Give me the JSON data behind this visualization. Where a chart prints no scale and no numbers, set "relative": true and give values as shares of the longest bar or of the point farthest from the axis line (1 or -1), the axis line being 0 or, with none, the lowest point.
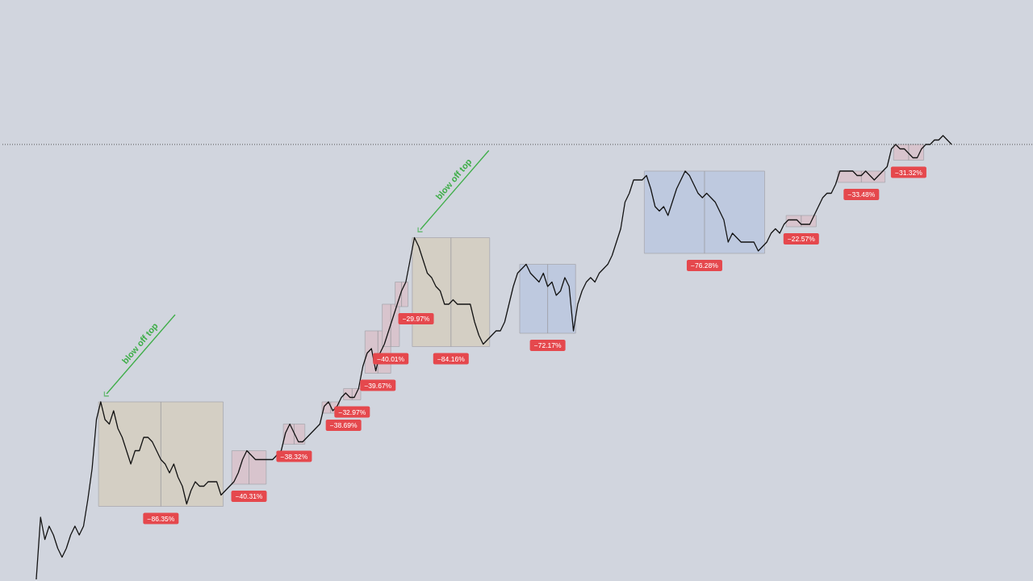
{
  "chart_data": {
    "type": "line",
    "relative": true,
    "tick_labels": false,
    "grid": false,
    "categories": [
      null,
      null,
      null,
      null,
      null,
      null,
      null,
      null,
      null,
      null,
      null,
      null,
      null,
      null,
      null,
      null,
      null,
      null,
      null,
      null,
      null,
      null,
      null,
      null,
      null,
      null,
      null,
      null,
      null,
      null,
      null,
      null,
      null,
      null,
      null,
      null,
      null,
      null,
      null,
      null,
      null,
      null,
      null,
      null,
      null,
      null,
      null,
      null,
      null,
      null,
      null,
      null,
      null,
      null,
      null,
      null,
      null,
      null,
      null,
      null,
      null,
      null,
      null,
      null,
      null,
      null,
      null,
      null,
      null,
      null,
      null,
      null,
      null,
      null,
      null,
      null,
      null,
      null,
      null,
      null,
      null,
      null,
      null,
      null,
      null,
      null,
      null,
      null,
      null,
      null,
      null,
      null,
      null,
      null,
      null,
      null,
      null,
      null,
      null,
      null,
      null,
      null,
      null,
      null,
      null,
      null,
      null,
      null,
      null,
      null,
      null,
      null,
      null,
      null,
      null,
      null,
      null,
      null,
      null,
      null,
      null,
      null,
      null,
      null,
      null,
      null,
      null,
      null,
      null,
      null,
      null,
      null,
      null,
      null,
      null,
      null,
      null,
      null,
      null,
      null,
      null,
      null,
      null,
      null,
      null,
      null,
      null,
      null,
      null,
      null,
      null,
      null,
      null,
      null,
      null,
      null,
      null,
      null,
      null,
      null,
      null,
      null,
      null,
      null,
      null,
      null,
      null,
      null,
      null,
      null,
      null,
      null,
      null,
      null,
      null,
      null,
      null,
      null,
      null,
      null,
      null,
      null,
      null,
      null,
      null,
      null,
      null,
      null,
      null,
      null,
      null,
      null,
      null,
      null,
      null,
      null,
      null,
      null,
      null,
      null,
      null,
      null,
      null,
      null,
      null,
      null,
      null,
      null,
      null,
      null,
      null,
      null,
      null,
      null
    ],
    "series": [
      {
        "color": "#131313",
        "values": [
          0,
          0.14,
          0.09,
          0.12,
          0.1,
          0.07,
          0.05,
          0.07,
          0.1,
          0.12,
          0.1,
          0.12,
          0.18,
          0.25,
          0.36,
          0.4,
          0.36,
          0.35,
          0.38,
          0.34,
          0.32,
          0.29,
          0.26,
          0.29,
          0.29,
          0.32,
          0.32,
          0.31,
          0.29,
          0.27,
          0.26,
          0.24,
          0.26,
          0.23,
          0.21,
          0.17,
          0.2,
          0.22,
          0.21,
          0.21,
          0.22,
          0.22,
          0.22,
          0.19,
          0.2,
          0.21,
          0.22,
          0.24,
          0.27,
          0.29,
          0.28,
          0.27,
          0.27,
          0.27,
          0.27,
          0.27,
          0.28,
          0.29,
          0.33,
          0.35,
          0.33,
          0.31,
          0.31,
          0.32,
          0.33,
          0.34,
          0.35,
          0.39,
          0.4,
          0.38,
          0.39,
          0.41,
          0.42,
          0.41,
          0.41,
          0.43,
          0.48,
          0.51,
          0.52,
          0.47,
          0.51,
          0.53,
          0.56,
          0.59,
          0.62,
          0.65,
          0.67,
          0.72,
          0.77,
          0.75,
          0.72,
          0.69,
          0.68,
          0.66,
          0.65,
          0.62,
          0.62,
          0.63,
          0.62,
          0.62,
          0.62,
          0.62,
          0.58,
          0.55,
          0.53,
          0.54,
          0.55,
          0.56,
          0.56,
          0.58,
          0.62,
          0.66,
          0.69,
          0.7,
          0.71,
          0.69,
          0.68,
          0.67,
          0.69,
          0.66,
          0.67,
          0.64,
          0.65,
          0.68,
          0.66,
          0.56,
          0.62,
          0.65,
          0.67,
          0.68,
          0.67,
          0.69,
          0.7,
          0.71,
          0.73,
          0.76,
          0.79,
          0.85,
          0.87,
          0.9,
          0.9,
          0.9,
          0.91,
          0.88,
          0.84,
          0.83,
          0.84,
          0.82,
          0.85,
          0.88,
          0.9,
          0.92,
          0.91,
          0.89,
          0.87,
          0.86,
          0.87,
          0.86,
          0.85,
          0.83,
          0.81,
          0.76,
          0.78,
          0.77,
          0.76,
          0.76,
          0.76,
          0.76,
          0.74,
          0.75,
          0.76,
          0.78,
          0.79,
          0.78,
          0.8,
          0.81,
          0.81,
          0.81,
          0.8,
          0.8,
          0.8,
          0.82,
          0.84,
          0.86,
          0.87,
          0.87,
          0.89,
          0.92,
          0.92,
          0.92,
          0.92,
          0.91,
          0.91,
          0.92,
          0.91,
          0.9,
          0.91,
          0.92,
          0.93,
          0.97,
          0.98,
          0.97,
          0.97,
          0.96,
          0.95,
          0.95,
          0.97,
          0.98,
          0.98,
          0.99,
          0.99,
          1,
          0.99,
          0.98
        ]
      }
    ],
    "ref_lines": [
      {
        "axis": "y",
        "value": 0.98,
        "color": "#555555",
        "line_style": "dotted"
      }
    ],
    "annotations": [
      "−86.35%",
      "−40.31%",
      "−38.32%",
      "−38.69%",
      "−32.97%",
      "−39.67%",
      "−40.01%",
      "−29.97%",
      "−84.16%",
      "−72.17%",
      "−76.28%",
      "−22.57%",
      "−33.48%",
      "−31.32%",
      "blow off top",
      "blow off top"
    ]
  }
}
